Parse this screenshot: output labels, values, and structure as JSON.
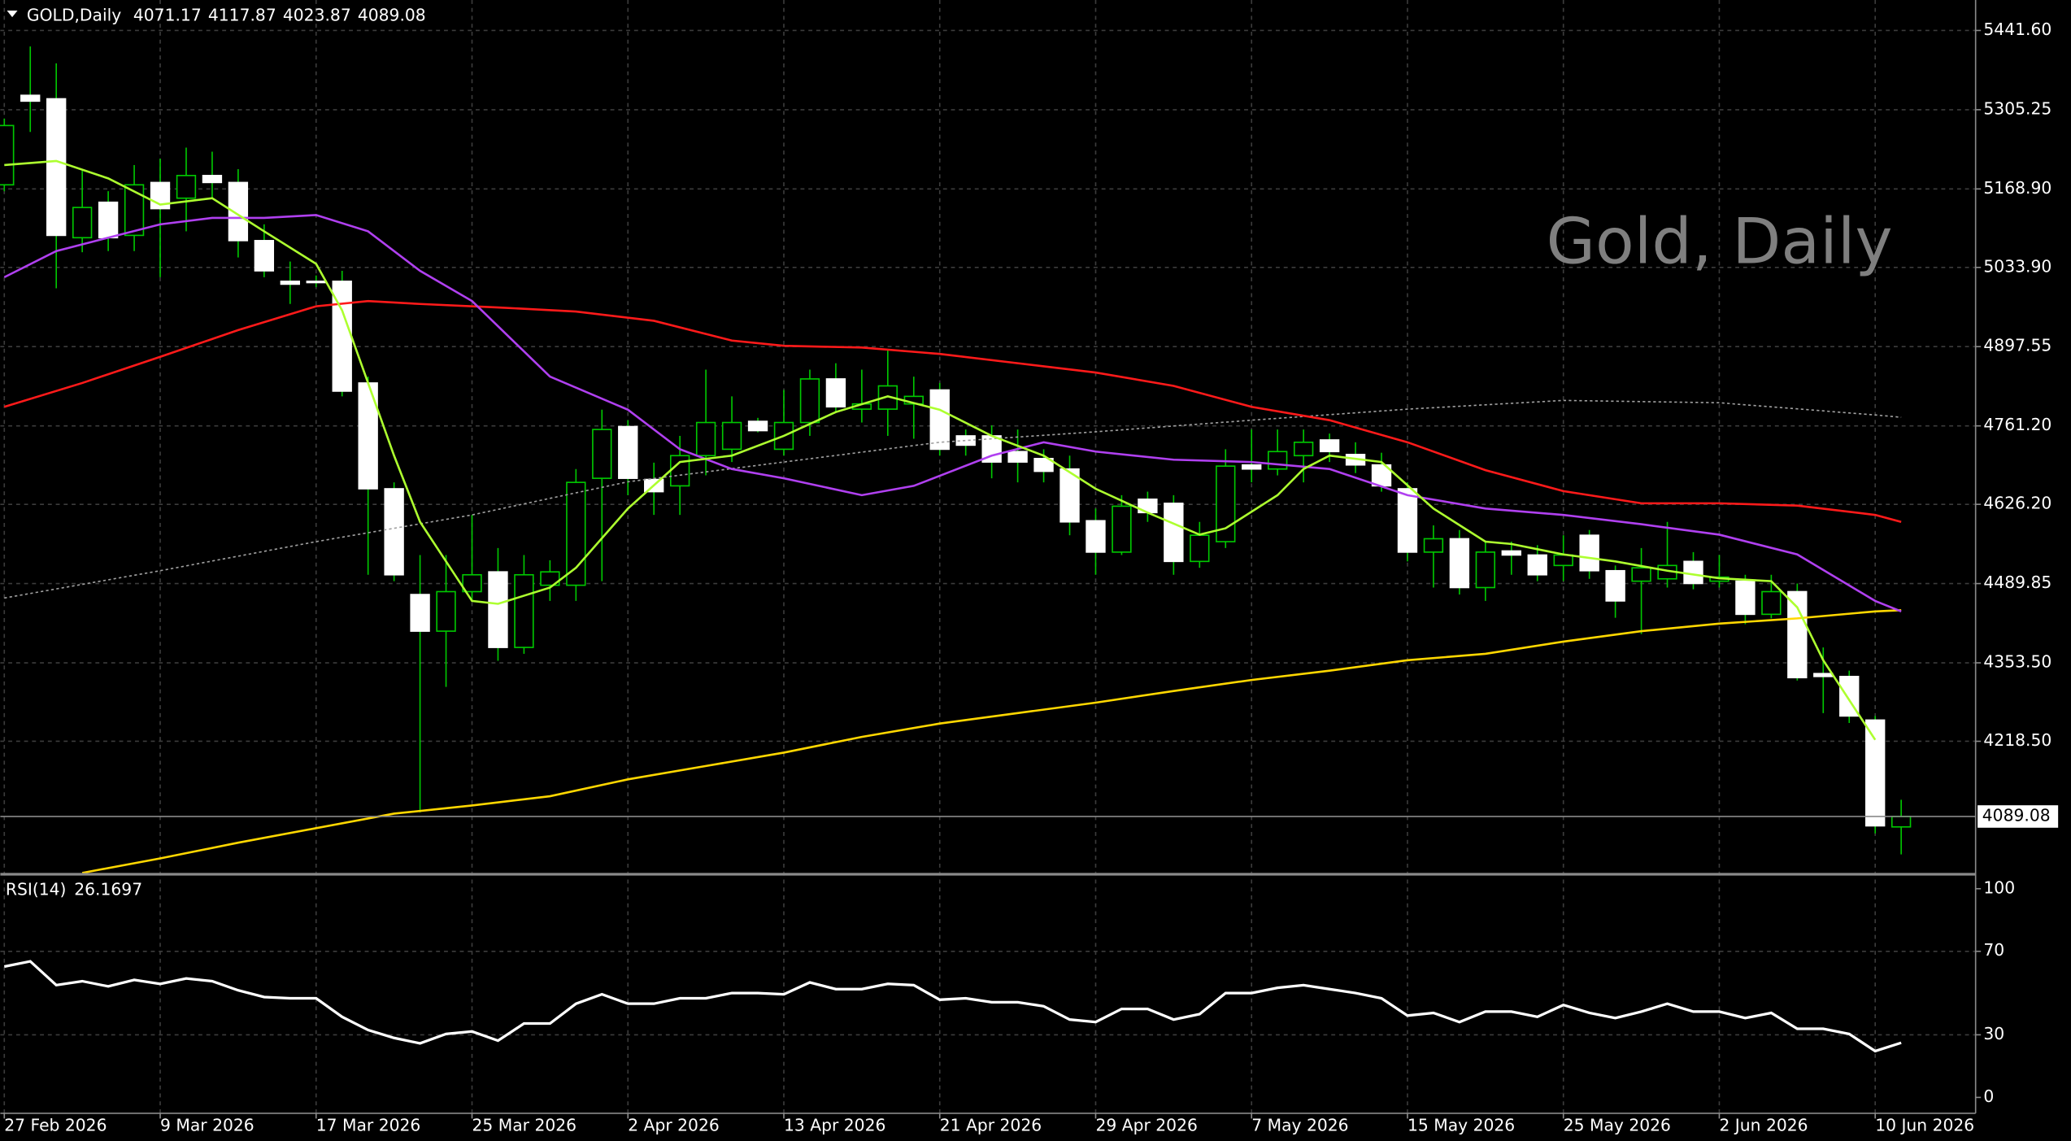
{
  "chart_data": {
    "type": "candlestick",
    "symbol_title": "GOLD,Daily",
    "watermark": "Gold, Daily",
    "grid": true,
    "up_color": "#000000",
    "down_color": "#ffffff",
    "wick_color": "#00c800",
    "categories": [
      "27 Feb 2026",
      null,
      null,
      null,
      null,
      null,
      "9 Mar 2026",
      null,
      null,
      null,
      null,
      null,
      "17 Mar 2026",
      null,
      null,
      null,
      null,
      null,
      "25 Mar 2026",
      null,
      null,
      null,
      null,
      null,
      "2 Apr 2026",
      null,
      null,
      null,
      null,
      null,
      "13 Apr 2026",
      null,
      null,
      null,
      null,
      null,
      "21 Apr 2026",
      null,
      null,
      null,
      null,
      null,
      "29 Apr 2026",
      null,
      null,
      null,
      null,
      null,
      "7 May 2026",
      null,
      null,
      null,
      null,
      null,
      "15 May 2026",
      null,
      null,
      null,
      null,
      null,
      "25 May 2026",
      null,
      null,
      null,
      null,
      null,
      "2 Jun 2026",
      null,
      null,
      null,
      null,
      null,
      "10 Jun 2026",
      null
    ],
    "open": [
      5176,
      5330,
      5324,
      5085,
      5146,
      5089,
      5180,
      5153,
      5192,
      5180,
      5080,
      5010,
      5010,
      5010,
      4835,
      4653,
      4471,
      4408,
      4476,
      4510,
      4380,
      4487,
      4487,
      4671,
      4760,
      4669,
      4658,
      4710,
      4721,
      4769,
      4721,
      4767,
      4842,
      4790,
      4790,
      4799,
      4823,
      4744,
      4744,
      4717,
      4705,
      4687,
      4598,
      4544,
      4635,
      4628,
      4528,
      4562,
      4694,
      4687,
      4710,
      4737,
      4712,
      4694,
      4653,
      4544,
      4567,
      4483,
      4546,
      4539,
      4521,
      4573,
      4512,
      4494,
      4498,
      4528,
      4494,
      4494,
      4437,
      4476,
      4335,
      4330,
      4255,
      4071.17
    ],
    "high": [
      5290,
      5414,
      5385,
      5200,
      5165,
      5210,
      5221,
      5240,
      5233,
      5203,
      5108,
      5044,
      5020,
      5028,
      4846,
      4664,
      4539,
      4539,
      4608,
      4551,
      4539,
      4530,
      4687,
      4789,
      4771,
      4698,
      4744,
      4858,
      4812,
      4775,
      4823,
      4858,
      4869,
      4858,
      4892,
      4846,
      4835,
      4755,
      4762,
      4755,
      4721,
      4710,
      4619,
      4642,
      4648,
      4642,
      4596,
      4721,
      4755,
      4755,
      4755,
      4748,
      4733,
      4715,
      4664,
      4590,
      4582,
      4562,
      4562,
      4556,
      4573,
      4582,
      4521,
      4551,
      4596,
      4544,
      4539,
      4505,
      4505,
      4490,
      4380,
      4340,
      4262,
      4117.87
    ],
    "low": [
      5165,
      5267,
      4998,
      5060,
      5062,
      5062,
      5017,
      5096,
      5153,
      5051,
      5017,
      4971,
      5000,
      4812,
      4505,
      4494,
      4096,
      4312,
      4460,
      4357,
      4369,
      4460,
      4460,
      4494,
      4642,
      4608,
      4608,
      4676,
      4699,
      4750,
      4710,
      4744,
      4785,
      4767,
      4744,
      4739,
      4710,
      4710,
      4671,
      4664,
      4664,
      4573,
      4505,
      4539,
      4596,
      4505,
      4517,
      4551,
      4664,
      4676,
      4664,
      4699,
      4680,
      4648,
      4528,
      4483,
      4471,
      4460,
      4505,
      4494,
      4494,
      4498,
      4431,
      4403,
      4483,
      4480,
      4483,
      4420,
      4430,
      4323,
      4267,
      4250,
      4060,
      4023.87
    ],
    "close": [
      5278,
      5320,
      5089,
      5137,
      5085,
      5176,
      5135,
      5192,
      5180,
      5080,
      5028,
      5005,
      5008,
      4821,
      4653,
      4505,
      4408,
      4476,
      4505,
      4380,
      4505,
      4510,
      4664,
      4755,
      4671,
      4648,
      4710,
      4767,
      4767,
      4753,
      4767,
      4842,
      4794,
      4799,
      4830,
      4812,
      4721,
      4728,
      4699,
      4699,
      4683,
      4596,
      4544,
      4623,
      4612,
      4528,
      4573,
      4692,
      4687,
      4717,
      4733,
      4717,
      4694,
      4658,
      4544,
      4567,
      4483,
      4544,
      4539,
      4505,
      4539,
      4512,
      4460,
      4517,
      4521,
      4490,
      4501,
      4437,
      4476,
      4328,
      4330,
      4262,
      4073,
      4089.08
    ],
    "ylim": [
      3992,
      5494
    ],
    "yticks": [
      {
        "value": 5441.6,
        "label": "5441.60"
      },
      5305.25,
      {
        "value": 5168.9,
        "label": "5168.90"
      },
      {
        "value": 5033.9,
        "label": "5033.90"
      },
      4897.55,
      {
        "value": 4761.2,
        "label": "4761.20"
      },
      {
        "value": 4626.2,
        "label": "4626.20"
      },
      4489.85,
      {
        "value": 4353.5,
        "label": "4353.50"
      },
      {
        "value": 4218.5,
        "label": "4218.50"
      }
    ],
    "overlays": [
      {
        "type": "line",
        "color": "#ffd700",
        "x": [
          3,
          6,
          9,
          12,
          15,
          18,
          21,
          24,
          27,
          30,
          33,
          36,
          39,
          42,
          45,
          48,
          51,
          54,
          57,
          60,
          63,
          66,
          69,
          72,
          73
        ],
        "values": [
          3992,
          4017,
          4044,
          4069,
          4094,
          4108,
          4124,
          4153,
          4176,
          4199,
          4226,
          4249,
          4267,
          4285,
          4305,
          4324,
          4340,
          4358,
          4369,
          4390,
          4408,
          4421,
          4430,
          4442,
          4444
        ]
      },
      {
        "type": "line",
        "color": "#a0a0a0",
        "dashed": true,
        "x": [
          0,
          6,
          12,
          18,
          24,
          30,
          36,
          42,
          48,
          54,
          60,
          66,
          72,
          73
        ],
        "values": [
          4465,
          4512,
          4562,
          4608,
          4665,
          4699,
          4733,
          4751,
          4771,
          4790,
          4805,
          4801,
          4780,
          4776
        ]
      },
      {
        "type": "line",
        "color": "#ff1a1a",
        "x": [
          0,
          3,
          6,
          9,
          12,
          14,
          16,
          19,
          22,
          25,
          28,
          30,
          33,
          36,
          39,
          42,
          45,
          48,
          51,
          54,
          57,
          60,
          63,
          66,
          69,
          72,
          73
        ],
        "values": [
          4794,
          4835,
          4880,
          4926,
          4967,
          4976,
          4971,
          4965,
          4958,
          4942,
          4908,
          4899,
          4896,
          4885,
          4869,
          4853,
          4830,
          4794,
          4771,
          4733,
          4685,
          4649,
          4628,
          4628,
          4624,
          4608,
          4596
        ]
      },
      {
        "type": "line",
        "color": "#b040f0",
        "x": [
          0,
          2,
          4,
          6,
          8,
          10,
          12,
          14,
          16,
          18,
          21,
          24,
          26,
          28,
          30,
          33,
          35,
          38,
          40,
          42,
          45,
          48,
          51,
          54,
          57,
          60,
          63,
          66,
          69,
          72,
          73
        ],
        "values": [
          5017,
          5062,
          5085,
          5108,
          5119,
          5119,
          5124,
          5096,
          5028,
          4976,
          4846,
          4789,
          4721,
          4687,
          4671,
          4642,
          4658,
          4710,
          4733,
          4717,
          4703,
          4699,
          4687,
          4642,
          4619,
          4608,
          4592,
          4574,
          4540,
          4460,
          4442
        ]
      },
      {
        "type": "line",
        "color": "#adff2f",
        "x": [
          0,
          2,
          4,
          6,
          8,
          10,
          12,
          13,
          14,
          15,
          16,
          17,
          18,
          19,
          21,
          22,
          24,
          26,
          28,
          30,
          32,
          34,
          36,
          38,
          40,
          42,
          44,
          46,
          47,
          49,
          50,
          51,
          53,
          55,
          57,
          58,
          60,
          62,
          64,
          66,
          68,
          69,
          70,
          72
        ],
        "values": [
          5210,
          5217,
          5187,
          5142,
          5153,
          5096,
          5040,
          4960,
          4835,
          4710,
          4596,
          4528,
          4460,
          4455,
          4483,
          4517,
          4619,
          4699,
          4710,
          4744,
          4785,
          4812,
          4789,
          4744,
          4710,
          4653,
          4612,
          4574,
          4585,
          4642,
          4687,
          4710,
          4699,
          4619,
          4562,
          4558,
          4540,
          4528,
          4512,
          4499,
          4494,
          4449,
          4358,
          4221
        ]
      }
    ],
    "rsi": {
      "type": "line",
      "label": "RSI(14)",
      "color": "#ffffff",
      "values": [
        62.7,
        65.2,
        53.8,
        55.7,
        53.2,
        56.3,
        54.4,
        57.0,
        55.7,
        51.3,
        48.1,
        47.5,
        47.5,
        38.6,
        32.3,
        28.5,
        25.9,
        30.4,
        31.6,
        27.2,
        35.4,
        35.4,
        44.9,
        49.4,
        44.9,
        44.9,
        47.5,
        47.5,
        50.0,
        50.0,
        49.4,
        55.1,
        51.9,
        51.9,
        54.4,
        53.8,
        46.8,
        47.5,
        45.6,
        45.6,
        43.7,
        37.3,
        36.1,
        42.4,
        42.4,
        37.3,
        39.9,
        50.0,
        50.0,
        52.5,
        53.8,
        51.9,
        50.0,
        47.5,
        39.2,
        40.5,
        36.1,
        41.1,
        41.1,
        38.6,
        44.3,
        40.5,
        38.0,
        41.1,
        44.9,
        41.1,
        41.1,
        38.0,
        40.5,
        32.9,
        32.9,
        30.4,
        22.2,
        26.1697
      ],
      "ylim": [
        -5.7,
        106.3
      ],
      "yticks": [
        100,
        70,
        30,
        0
      ]
    }
  }
}
